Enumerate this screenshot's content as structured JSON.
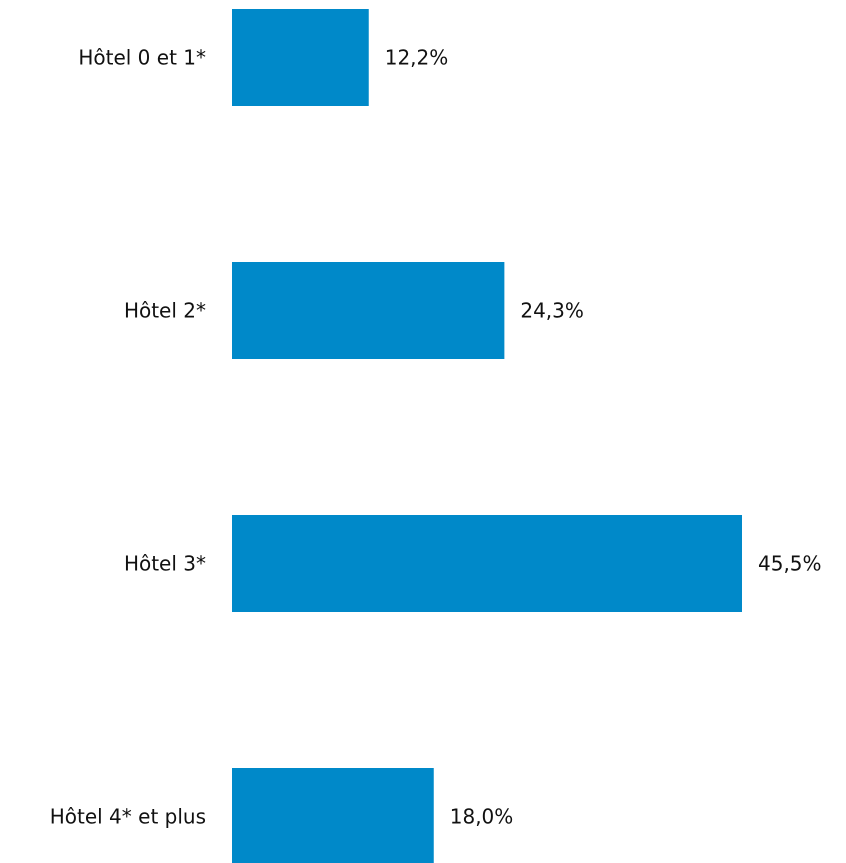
{
  "chart_data": {
    "type": "bar",
    "orientation": "horizontal",
    "categories": [
      "Hôtel 0 et 1*",
      "Hôtel 2*",
      "Hôtel 3*",
      "Hôtel 4* et plus"
    ],
    "values": [
      12.2,
      24.3,
      45.5,
      18.0
    ],
    "value_labels": [
      "12,2%",
      "24,3%",
      "45,5%",
      "18,0%"
    ],
    "unit": "%",
    "xlim": [
      0,
      45.5
    ],
    "grid": false,
    "legend": "none",
    "bar_color": "#0089C9"
  }
}
